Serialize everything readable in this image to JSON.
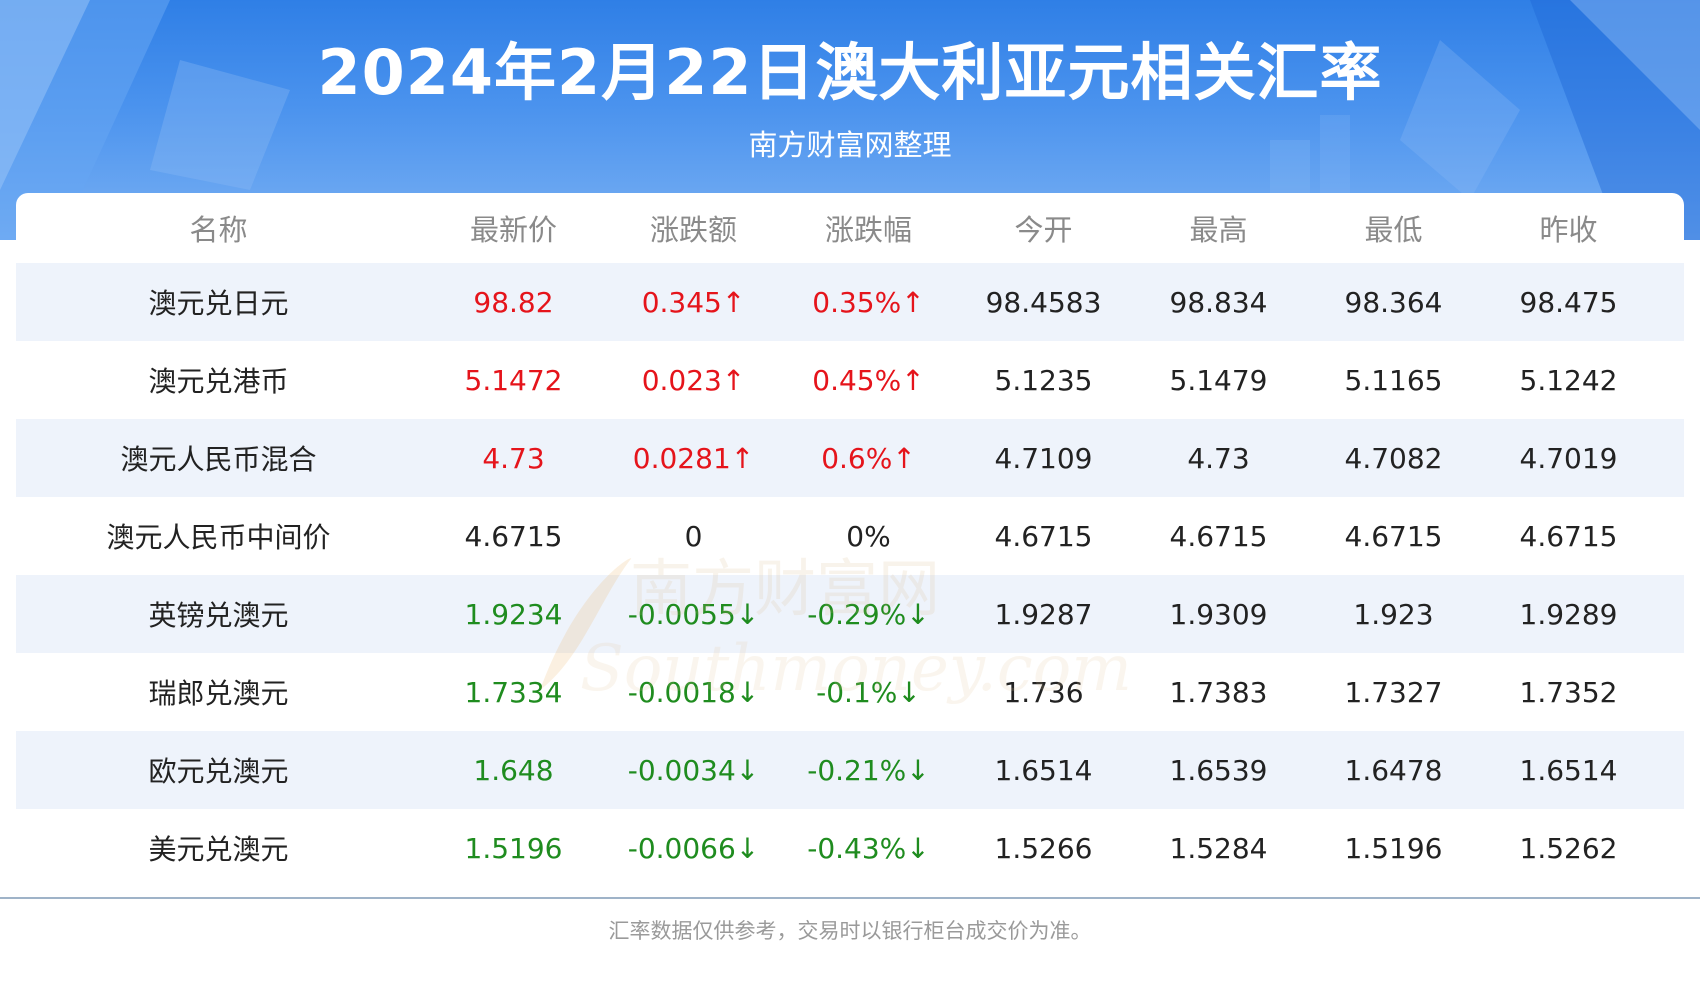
{
  "header": {
    "title": "2024年2月22日澳大利亚元相关汇率",
    "subtitle": "南方财富网整理"
  },
  "table": {
    "columns": [
      "名称",
      "最新价",
      "涨跌额",
      "涨跌幅",
      "今开",
      "最高",
      "最低",
      "昨收"
    ],
    "rows": [
      {
        "name": "澳元兑日元",
        "latest": "98.82",
        "change": "0.345↑",
        "pct": "0.35%↑",
        "open": "98.4583",
        "high": "98.834",
        "low": "98.364",
        "prev": "98.475",
        "trend": "up"
      },
      {
        "name": "澳元兑港币",
        "latest": "5.1472",
        "change": "0.023↑",
        "pct": "0.45%↑",
        "open": "5.1235",
        "high": "5.1479",
        "low": "5.1165",
        "prev": "5.1242",
        "trend": "up"
      },
      {
        "name": "澳元人民币混合",
        "latest": "4.73",
        "change": "0.0281↑",
        "pct": "0.6%↑",
        "open": "4.7109",
        "high": "4.73",
        "low": "4.7082",
        "prev": "4.7019",
        "trend": "up"
      },
      {
        "name": "澳元人民币中间价",
        "latest": "4.6715",
        "change": "0",
        "pct": "0%",
        "open": "4.6715",
        "high": "4.6715",
        "low": "4.6715",
        "prev": "4.6715",
        "trend": "flat"
      },
      {
        "name": "英镑兑澳元",
        "latest": "1.9234",
        "change": "-0.0055↓",
        "pct": "-0.29%↓",
        "open": "1.9287",
        "high": "1.9309",
        "low": "1.923",
        "prev": "1.9289",
        "trend": "down"
      },
      {
        "name": "瑞郎兑澳元",
        "latest": "1.7334",
        "change": "-0.0018↓",
        "pct": "-0.1%↓",
        "open": "1.736",
        "high": "1.7383",
        "low": "1.7327",
        "prev": "1.7352",
        "trend": "down"
      },
      {
        "name": "欧元兑澳元",
        "latest": "1.648",
        "change": "-0.0034↓",
        "pct": "-0.21%↓",
        "open": "1.6514",
        "high": "1.6539",
        "low": "1.6478",
        "prev": "1.6514",
        "trend": "down"
      },
      {
        "name": "美元兑澳元",
        "latest": "1.5196",
        "change": "-0.0066↓",
        "pct": "-0.43%↓",
        "open": "1.5266",
        "high": "1.5284",
        "low": "1.5196",
        "prev": "1.5262",
        "trend": "down"
      }
    ]
  },
  "footer": {
    "note": "汇率数据仅供参考，交易时以银行柜台成交价为准。"
  },
  "watermark": {
    "cn": "南方财富网",
    "en": "Southmoney.com"
  },
  "colors": {
    "up": "#e5141b",
    "down": "#1f8c1f",
    "header_bg": "#3b86ea",
    "alt_row": "#eef3fb"
  }
}
